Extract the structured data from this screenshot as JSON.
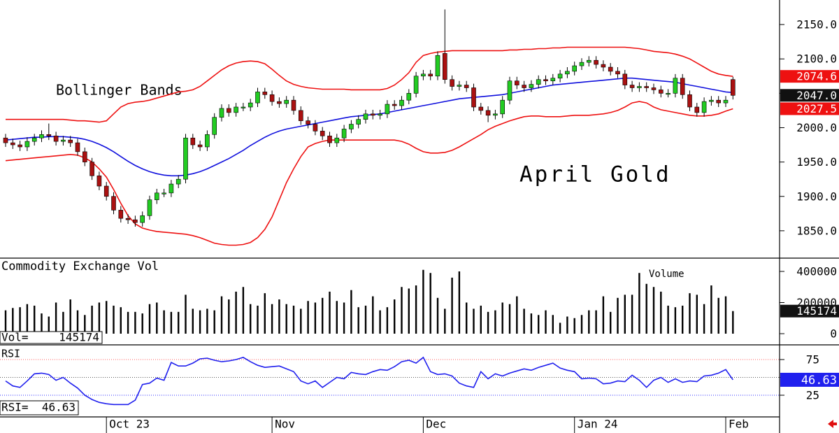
{
  "chart_data": [
    {
      "type": "candlestick",
      "title": "April Gold",
      "annotation": "Bollinger Bands",
      "open": [
        1985,
        1978,
        1975,
        1972,
        1980,
        1985,
        1990,
        1988,
        1980,
        1982,
        1978,
        1965,
        1950,
        1930,
        1915,
        1900,
        1880,
        1868,
        1866,
        1862,
        1872,
        1895,
        1905,
        1905,
        1918,
        1925,
        1985,
        1975,
        1972,
        1990,
        2015,
        2028,
        2022,
        2030,
        2030,
        2036,
        2052,
        2048,
        2038,
        2035,
        2040,
        2025,
        2010,
        2005,
        1995,
        1988,
        1978,
        1985,
        1998,
        2005,
        2012,
        2020,
        2018,
        2020,
        2034,
        2032,
        2040,
        2050,
        2075,
        2078,
        2075,
        2108,
        2070,
        2060,
        2062,
        2058,
        2030,
        2025,
        2018,
        2020,
        2040,
        2068,
        2062,
        2058,
        2063,
        2070,
        2068,
        2072,
        2078,
        2082,
        2090,
        2095,
        2098,
        2092,
        2088,
        2082,
        2078,
        2062,
        2058,
        2060,
        2058,
        2055,
        2050,
        2050,
        2072,
        2048,
        2030,
        2022,
        2038,
        2040,
        2036,
        2070
      ],
      "high": [
        1991,
        1984,
        1981,
        1986,
        1991,
        1996,
        2006,
        1994,
        1988,
        1988,
        1984,
        1971,
        1956,
        1936,
        1921,
        1906,
        1886,
        1874,
        1872,
        1878,
        1901,
        1911,
        1911,
        1924,
        1931,
        1991,
        1991,
        1981,
        1996,
        2021,
        2034,
        2034,
        2036,
        2036,
        2042,
        2058,
        2058,
        2054,
        2044,
        2046,
        2046,
        2031,
        2016,
        2011,
        2001,
        1994,
        1991,
        2004,
        2011,
        2018,
        2026,
        2026,
        2026,
        2040,
        2040,
        2046,
        2056,
        2081,
        2084,
        2084,
        2111,
        2172,
        2076,
        2068,
        2068,
        2064,
        2036,
        2031,
        2026,
        2046,
        2074,
        2074,
        2068,
        2069,
        2076,
        2076,
        2078,
        2084,
        2088,
        2096,
        2101,
        2104,
        2104,
        2098,
        2094,
        2088,
        2084,
        2068,
        2066,
        2066,
        2064,
        2061,
        2056,
        2078,
        2078,
        2054,
        2036,
        2044,
        2046,
        2046,
        2046,
        2074
      ],
      "low": [
        1972,
        1969,
        1966,
        1966,
        1974,
        1979,
        1982,
        1974,
        1974,
        1972,
        1959,
        1944,
        1924,
        1909,
        1894,
        1874,
        1862,
        1860,
        1856,
        1856,
        1866,
        1889,
        1899,
        1899,
        1912,
        1919,
        1969,
        1966,
        1966,
        1984,
        2009,
        2016,
        2016,
        2024,
        2024,
        2030,
        2042,
        2032,
        2029,
        2029,
        2019,
        2004,
        1999,
        1989,
        1982,
        1972,
        1972,
        1979,
        1992,
        1999,
        2006,
        2012,
        2012,
        2014,
        2026,
        2026,
        2034,
        2044,
        2069,
        2069,
        2069,
        2064,
        2054,
        2054,
        2052,
        2024,
        2019,
        2008,
        2012,
        2014,
        2034,
        2056,
        2052,
        2052,
        2057,
        2062,
        2062,
        2066,
        2072,
        2076,
        2084,
        2089,
        2086,
        2082,
        2076,
        2072,
        2056,
        2052,
        2052,
        2052,
        2049,
        2044,
        2044,
        2044,
        2042,
        2024,
        2016,
        2016,
        2032,
        2030,
        2030,
        2041
      ],
      "close": [
        1978,
        1975,
        1972,
        1980,
        1985,
        1990,
        1988,
        1980,
        1982,
        1978,
        1965,
        1950,
        1930,
        1915,
        1900,
        1880,
        1868,
        1866,
        1862,
        1872,
        1895,
        1905,
        1905,
        1918,
        1925,
        1985,
        1975,
        1972,
        1990,
        2015,
        2028,
        2022,
        2030,
        2030,
        2036,
        2052,
        2048,
        2038,
        2035,
        2040,
        2025,
        2010,
        2005,
        1995,
        1988,
        1978,
        1985,
        1998,
        2005,
        2012,
        2020,
        2018,
        2020,
        2034,
        2032,
        2040,
        2050,
        2075,
        2078,
        2075,
        2105,
        2070,
        2060,
        2062,
        2058,
        2030,
        2025,
        2018,
        2020,
        2040,
        2068,
        2062,
        2058,
        2063,
        2070,
        2068,
        2072,
        2078,
        2082,
        2090,
        2095,
        2098,
        2092,
        2088,
        2082,
        2078,
        2062,
        2058,
        2060,
        2058,
        2055,
        2050,
        2050,
        2072,
        2048,
        2030,
        2022,
        2038,
        2040,
        2036,
        2040,
        2047
      ],
      "close_label": "2047.0",
      "up_color": "#22cc22",
      "down_color": "#aa1111",
      "bands": {
        "upper": [
          2012,
          2012,
          2012,
          2012,
          2012,
          2012,
          2012,
          2012,
          2012,
          2011,
          2010,
          2010,
          2009,
          2008,
          2010,
          2020,
          2030,
          2035,
          2037,
          2038,
          2040,
          2043,
          2046,
          2049,
          2052,
          2053,
          2055,
          2060,
          2068,
          2076,
          2084,
          2090,
          2094,
          2096,
          2097,
          2096,
          2093,
          2085,
          2076,
          2068,
          2063,
          2060,
          2058,
          2057,
          2056,
          2056,
          2056,
          2056,
          2055,
          2055,
          2055,
          2055,
          2055,
          2057,
          2062,
          2070,
          2080,
          2095,
          2105,
          2108,
          2110,
          2111,
          2112,
          2112,
          2112,
          2112,
          2112,
          2112,
          2112,
          2112,
          2113,
          2113,
          2114,
          2114,
          2115,
          2115,
          2116,
          2116,
          2117,
          2117,
          2117,
          2117,
          2117,
          2117,
          2117,
          2117,
          2117,
          2116,
          2115,
          2113,
          2111,
          2110,
          2109,
          2107,
          2104,
          2100,
          2094,
          2088,
          2082,
          2078,
          2076,
          2074.6
        ],
        "middle": [
          1982,
          1983,
          1984,
          1985,
          1986,
          1986,
          1987,
          1987,
          1987,
          1986,
          1985,
          1983,
          1980,
          1976,
          1971,
          1965,
          1958,
          1951,
          1945,
          1940,
          1936,
          1933,
          1931,
          1930,
          1930,
          1931,
          1933,
          1936,
          1940,
          1945,
          1950,
          1955,
          1961,
          1967,
          1974,
          1980,
          1986,
          1991,
          1995,
          1998,
          2000,
          2002,
          2004,
          2006,
          2008,
          2010,
          2012,
          2014,
          2016,
          2017,
          2018,
          2019,
          2020,
          2022,
          2024,
          2026,
          2028,
          2030,
          2032,
          2034,
          2036,
          2038,
          2040,
          2042,
          2043,
          2044,
          2045,
          2046,
          2047,
          2048,
          2050,
          2052,
          2054,
          2056,
          2058,
          2060,
          2062,
          2063,
          2064,
          2065,
          2066,
          2067,
          2068,
          2069,
          2070,
          2071,
          2072,
          2072,
          2071,
          2070,
          2069,
          2068,
          2067,
          2066,
          2064,
          2062,
          2060,
          2058,
          2056,
          2054,
          2052,
          2051.05
        ],
        "lower": [
          1952,
          1953,
          1954,
          1955,
          1956,
          1957,
          1958,
          1959,
          1960,
          1961,
          1960,
          1956,
          1950,
          1940,
          1928,
          1910,
          1890,
          1872,
          1860,
          1854,
          1851,
          1849,
          1848,
          1847,
          1846,
          1845,
          1843,
          1840,
          1836,
          1832,
          1830,
          1829,
          1829,
          1830,
          1833,
          1840,
          1852,
          1870,
          1895,
          1920,
          1940,
          1958,
          1972,
          1977,
          1980,
          1982,
          1982,
          1982,
          1982,
          1982,
          1982,
          1982,
          1982,
          1982,
          1982,
          1980,
          1976,
          1970,
          1965,
          1963,
          1963,
          1964,
          1967,
          1972,
          1978,
          1984,
          1990,
          1997,
          2002,
          2006,
          2010,
          2013,
          2016,
          2017,
          2017,
          2016,
          2016,
          2016,
          2017,
          2018,
          2018,
          2018,
          2019,
          2020,
          2022,
          2025,
          2030,
          2036,
          2038,
          2036,
          2030,
          2026,
          2024,
          2022,
          2020,
          2018,
          2017,
          2017,
          2018,
          2020,
          2024,
          2027.5
        ]
      },
      "band_colors": {
        "upper": "#ee1111",
        "middle": "#1010dd",
        "lower": "#ee1111"
      },
      "ylim": [
        1810.2,
        2185.7
      ],
      "yticks": [
        {
          "value": 1850,
          "label": "1850.0"
        },
        {
          "value": 1900,
          "label": "1900.0"
        },
        {
          "value": 1950,
          "label": "1950.0"
        },
        {
          "value": 2000,
          "label": "2000.0"
        },
        {
          "value": 2050,
          "label": "2050.0"
        },
        {
          "value": 2100,
          "label": "2100.0"
        },
        {
          "value": 2150,
          "label": "2150.0"
        }
      ]
    },
    {
      "type": "bar",
      "title": "Commodity Exchange Vol",
      "annotation": "Volume",
      "readout_label": "Vol=",
      "values": [
        150000,
        165000,
        170000,
        190000,
        180000,
        130000,
        110000,
        200000,
        140000,
        220000,
        150000,
        120000,
        180000,
        200000,
        210000,
        180000,
        170000,
        140000,
        140000,
        130000,
        190000,
        200000,
        150000,
        140000,
        140000,
        250000,
        160000,
        150000,
        160000,
        150000,
        240000,
        220000,
        270000,
        300000,
        190000,
        180000,
        260000,
        190000,
        220000,
        190000,
        180000,
        160000,
        210000,
        200000,
        230000,
        270000,
        210000,
        200000,
        280000,
        170000,
        180000,
        240000,
        150000,
        170000,
        220000,
        300000,
        290000,
        310000,
        410000,
        390000,
        230000,
        160000,
        360000,
        400000,
        200000,
        160000,
        180000,
        140000,
        150000,
        200000,
        190000,
        240000,
        160000,
        130000,
        120000,
        150000,
        120000,
        70000,
        110000,
        100000,
        120000,
        150000,
        150000,
        240000,
        140000,
        230000,
        250000,
        250000,
        390000,
        320000,
        300000,
        270000,
        180000,
        170000,
        180000,
        260000,
        250000,
        190000,
        310000,
        230000,
        240000,
        145174
      ],
      "color": "#000000",
      "ylim": [
        -67400,
        480900
      ],
      "yticks": [
        0,
        200000,
        400000
      ]
    },
    {
      "type": "line",
      "title": "RSI",
      "readout_label": "RSI=",
      "values": [
        45,
        38,
        36,
        45,
        55,
        56,
        54,
        46,
        50,
        42,
        35,
        25,
        19,
        15,
        13,
        12,
        12,
        12,
        18,
        40,
        42,
        49,
        46,
        71,
        66,
        66,
        70,
        76,
        77,
        74,
        72,
        73,
        75,
        78,
        72,
        67,
        64,
        65,
        66,
        62,
        58,
        45,
        41,
        45,
        36,
        43,
        50,
        48,
        57,
        55,
        54,
        58,
        61,
        60,
        65,
        72,
        74,
        70,
        78,
        58,
        54,
        55,
        52,
        42,
        38,
        36,
        58,
        48,
        55,
        52,
        56,
        59,
        62,
        60,
        64,
        67,
        70,
        63,
        60,
        58,
        48,
        49,
        48,
        41,
        42,
        45,
        44,
        53,
        46,
        36,
        46,
        50,
        43,
        48,
        43,
        45,
        44,
        52,
        53,
        56,
        61,
        46.63
      ],
      "color": "#2020ee",
      "ylim": [
        -4.4,
        94.6
      ],
      "yticks": [
        25,
        50,
        75
      ],
      "level_colors": [
        "#3030ff",
        "#555555",
        "#ff6060"
      ],
      "categories": [
        null,
        null,
        null,
        null,
        null,
        null,
        null,
        null,
        null,
        null,
        null,
        null,
        null,
        null,
        "Oct 23",
        null,
        null,
        null,
        null,
        null,
        null,
        null,
        null,
        null,
        null,
        null,
        null,
        null,
        null,
        null,
        null,
        null,
        null,
        null,
        null,
        null,
        null,
        "Nov",
        null,
        null,
        null,
        null,
        null,
        null,
        null,
        null,
        null,
        null,
        null,
        null,
        null,
        null,
        null,
        null,
        null,
        null,
        null,
        null,
        "Dec",
        null,
        null,
        null,
        null,
        null,
        null,
        null,
        null,
        null,
        null,
        null,
        null,
        null,
        null,
        null,
        null,
        null,
        null,
        null,
        null,
        "Jan 24",
        null,
        null,
        null,
        null,
        null,
        null,
        null,
        null,
        null,
        null,
        null,
        null,
        null,
        null,
        null,
        null,
        null,
        null,
        null,
        null,
        "Feb",
        null
      ]
    }
  ]
}
